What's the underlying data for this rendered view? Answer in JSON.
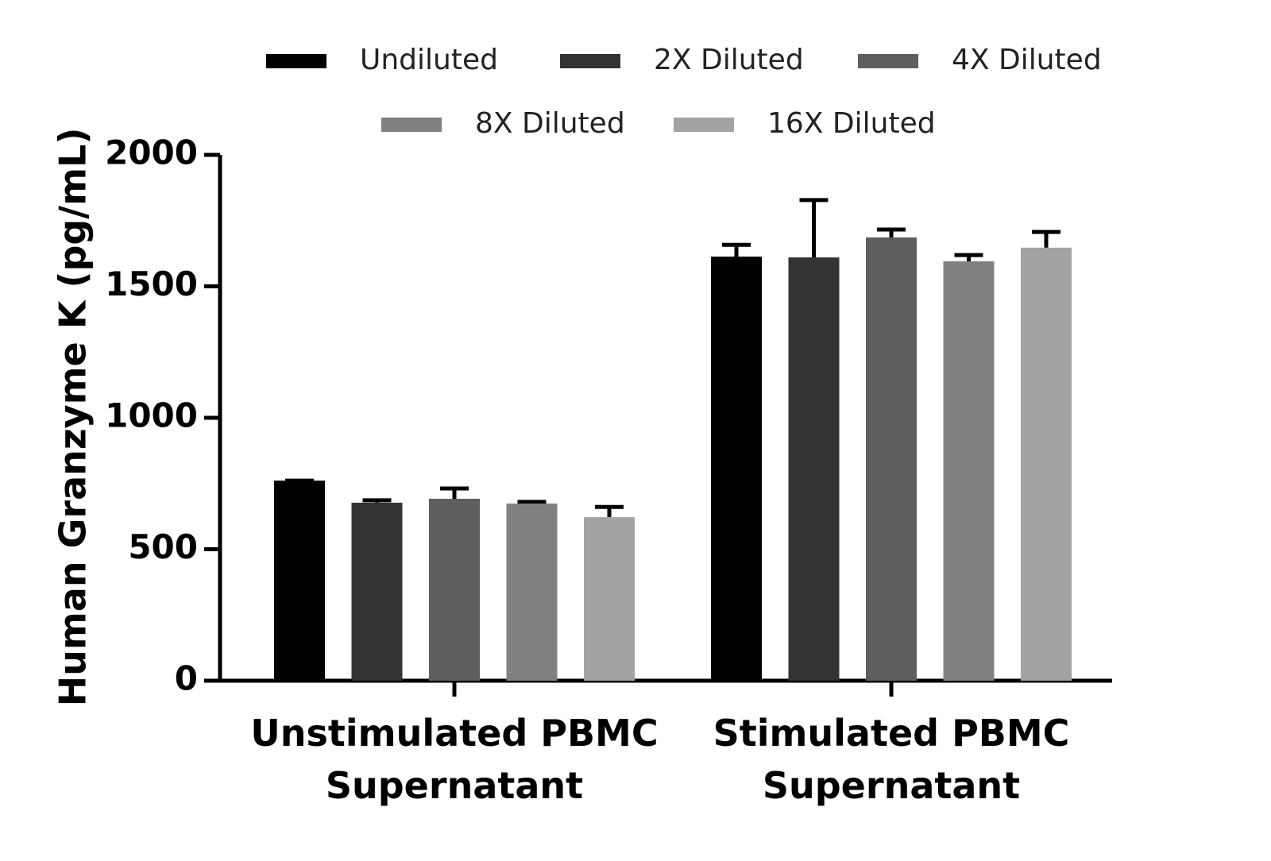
{
  "chart_data": {
    "type": "bar",
    "y_label": "Human Granzyme K (pg/mL)",
    "categories": [
      "Unstimulated PBMC Supernatant",
      "Stimulated PBMC Supernatant"
    ],
    "series": [
      {
        "name": "Undiluted",
        "color": "#000000",
        "values": [
          761,
          1613
        ],
        "errors": [
          0,
          45
        ]
      },
      {
        "name": "2X Diluted",
        "color": "#333333",
        "values": [
          677,
          1610
        ],
        "errors": [
          9,
          218
        ]
      },
      {
        "name": "4X Diluted",
        "color": "#5f5f5f",
        "values": [
          692,
          1686
        ],
        "errors": [
          39,
          30
        ]
      },
      {
        "name": "8X Diluted",
        "color": "#808080",
        "values": [
          674,
          1595
        ],
        "errors": [
          6,
          24
        ]
      },
      {
        "name": "16X Diluted",
        "color": "#a3a3a6",
        "values": [
          622,
          1647
        ],
        "errors": [
          39,
          60
        ]
      }
    ],
    "ylim": [
      0,
      2000
    ],
    "yticks": [
      0,
      500,
      1000,
      1500,
      2000
    ]
  }
}
